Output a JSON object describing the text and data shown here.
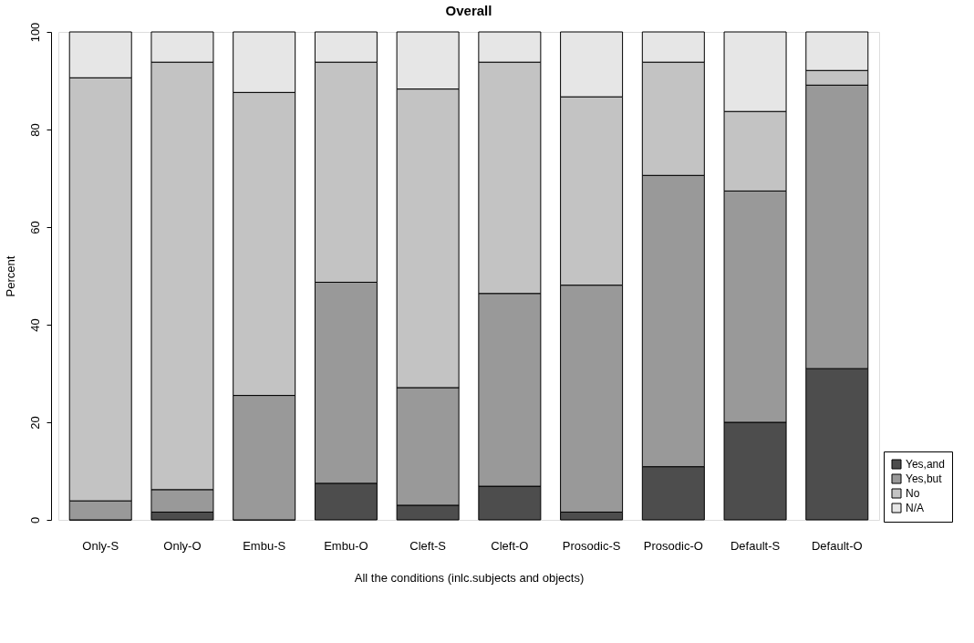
{
  "chart_data": {
    "type": "bar",
    "title": "Overall",
    "xlabel": "All the conditions (inlc.subjects and objects)",
    "ylabel": "Percent",
    "categories": [
      "Only-S",
      "Only-O",
      "Embu-S",
      "Embu-O",
      "Cleft-S",
      "Cleft-O",
      "Prosodic-S",
      "Prosodic-O",
      "Default-S",
      "Default-O"
    ],
    "stacked": true,
    "series": [
      {
        "name": "Yes,and",
        "color": "#4d4d4d",
        "values": [
          0,
          1.6,
          0,
          7.5,
          3.0,
          6.9,
          1.6,
          10.9,
          20.0,
          31.0
        ]
      },
      {
        "name": "Yes,but",
        "color": "#999999",
        "values": [
          3.9,
          4.6,
          25.5,
          41.2,
          24.1,
          39.5,
          46.5,
          59.7,
          47.4,
          58.1
        ]
      },
      {
        "name": "No",
        "color": "#c3c3c3",
        "values": [
          86.7,
          87.6,
          62.1,
          45.1,
          61.2,
          47.4,
          38.6,
          23.2,
          16.3,
          3.0
        ]
      },
      {
        "name": "N/A",
        "color": "#e6e6e6",
        "values": [
          9.4,
          6.2,
          12.4,
          6.2,
          11.7,
          6.2,
          13.3,
          6.2,
          16.3,
          7.9
        ]
      }
    ],
    "ylim": [
      0,
      100
    ],
    "yticks": [
      0,
      20,
      40,
      60,
      80,
      100
    ],
    "grid": false,
    "legend": "bottom right"
  }
}
